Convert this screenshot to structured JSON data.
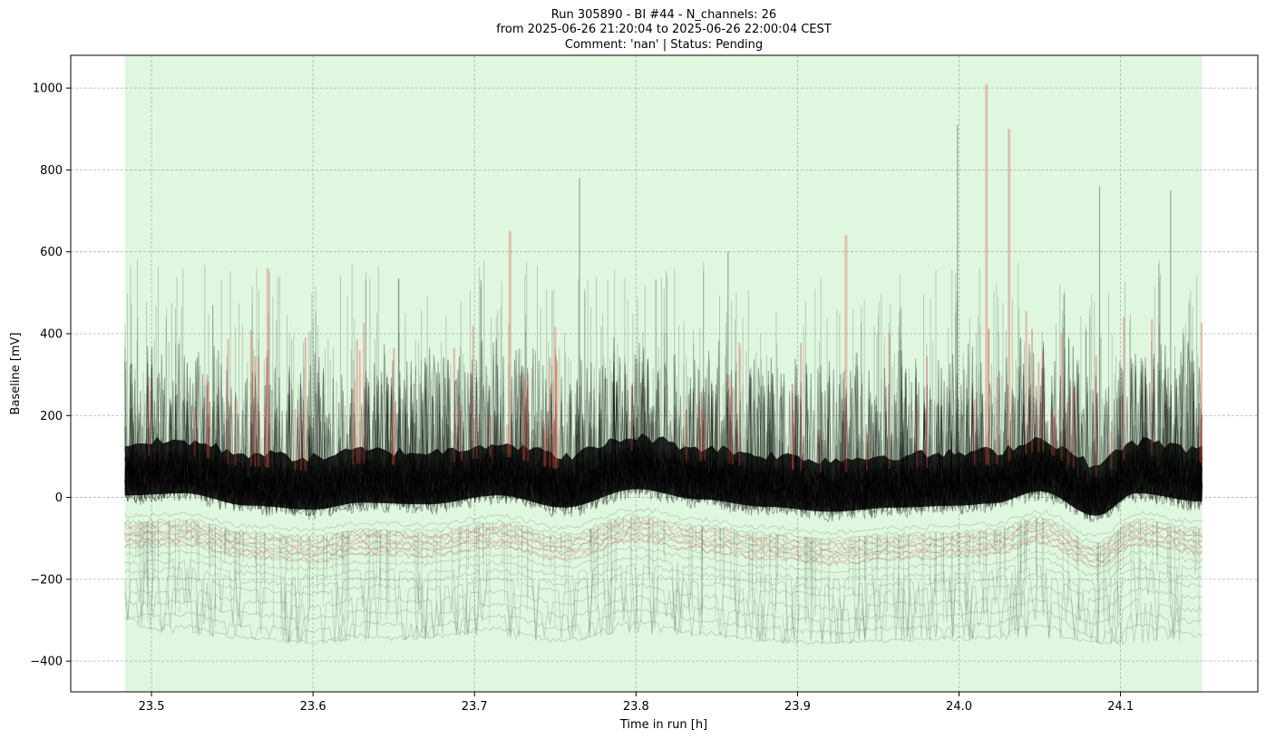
{
  "chart_data": {
    "type": "line",
    "title_lines": [
      "Run 305890  -  BI #44  -  N_channels: 26",
      "from  2025-06-26 21:20:04  to  2025-06-26 22:00:04 CEST",
      "Comment: 'nan' | Status: Pending"
    ],
    "xlabel": "Time in run [h]",
    "ylabel": "Baseline [mV]",
    "xlim": [
      23.45,
      24.185
    ],
    "ylim": [
      -475,
      1080
    ],
    "xticks": [
      23.5,
      23.6,
      23.7,
      23.8,
      23.9,
      24.0,
      24.1
    ],
    "xtick_labels": [
      "23.5",
      "23.6",
      "23.7",
      "23.8",
      "23.9",
      "24.0",
      "24.1"
    ],
    "yticks": [
      -400,
      -200,
      0,
      200,
      400,
      600,
      800,
      1000
    ],
    "ytick_labels": [
      "−400",
      "−200",
      "0",
      "200",
      "400",
      "600",
      "800",
      "1000"
    ],
    "grid": true,
    "shaded_region": {
      "x_start": 23.4835,
      "x_end": 24.1505,
      "color": "#dff7df"
    },
    "series_x_range": [
      23.4835,
      24.1505
    ],
    "colors": {
      "main": "#000000",
      "highlight": "#e0423a",
      "shade": "#dff7df",
      "grid": "#b0b0b0"
    },
    "baseline_trend": {
      "x": [
        23.485,
        23.52,
        23.56,
        23.6,
        23.63,
        23.67,
        23.715,
        23.755,
        23.8,
        23.84,
        23.88,
        23.92,
        23.96,
        24.0,
        24.02,
        24.05,
        24.085,
        24.11,
        24.15
      ],
      "y": [
        0,
        5,
        -25,
        -35,
        -18,
        -22,
        0,
        -30,
        15,
        -10,
        -28,
        -40,
        -30,
        -25,
        -20,
        10,
        -50,
        5,
        -15
      ]
    },
    "lower_envelope": {
      "x": [
        23.485,
        23.5,
        23.55,
        23.6,
        23.65,
        23.7,
        23.75,
        23.8,
        23.85,
        23.9,
        23.95,
        24.0,
        24.05,
        24.1,
        24.15
      ],
      "y": [
        -300,
        -330,
        -345,
        -360,
        -350,
        -340,
        -355,
        -335,
        -345,
        -360,
        -355,
        -350,
        -345,
        -360,
        -350
      ]
    },
    "notable_spikes": {
      "x": [
        23.538,
        23.572,
        23.653,
        23.704,
        23.722,
        23.765,
        23.857,
        23.93,
        23.999,
        24.017,
        24.031,
        24.087,
        24.131
      ],
      "y": [
        470,
        560,
        535,
        530,
        650,
        780,
        600,
        640,
        910,
        1010,
        900,
        760,
        750
      ]
    }
  }
}
